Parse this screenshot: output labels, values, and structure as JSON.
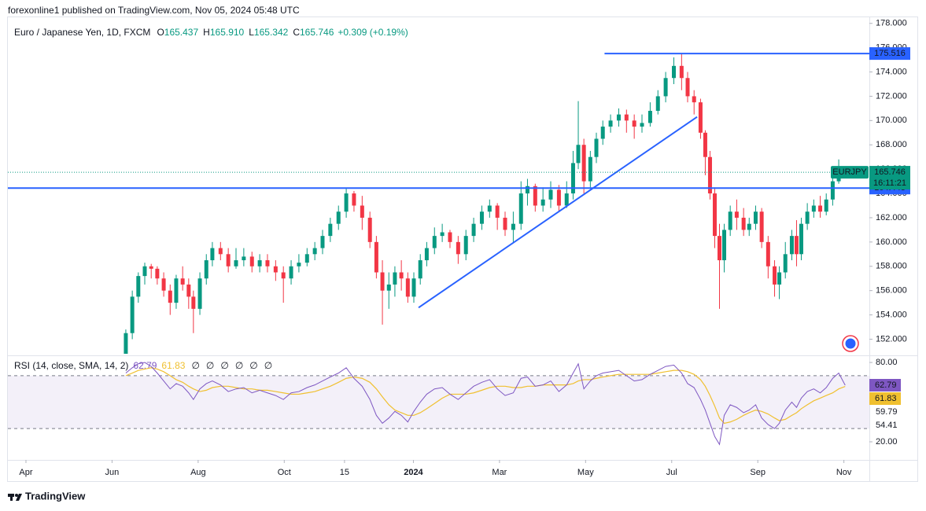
{
  "header": {
    "published": "forexonline1 published on TradingView.com, Nov 05, 2024 05:48 UTC",
    "symbol": "Euro / Japanese Yen, 1D, FXCM",
    "ohlc": [
      {
        "key": "O",
        "value": "165.437"
      },
      {
        "key": "H",
        "value": "165.910"
      },
      {
        "key": "L",
        "value": "165.342"
      },
      {
        "key": "C",
        "value": "165.746"
      }
    ],
    "change": "+0.309 (+0.19%)"
  },
  "chart_data": [
    {
      "type": "candlestick",
      "up_color": "#089981",
      "down_color": "#f23645",
      "xlim": [
        -0.42,
        19.5
      ],
      "xticks": [
        {
          "value": 0,
          "label": "Apr"
        },
        {
          "value": 2,
          "label": "Jun"
        },
        {
          "value": 4,
          "label": "Aug"
        },
        {
          "value": 6,
          "label": "Oct"
        },
        {
          "value": 7.4,
          "label": "15"
        },
        {
          "value": 9,
          "label": "2024"
        },
        {
          "value": 11,
          "label": "Mar"
        },
        {
          "value": 13,
          "label": "May"
        },
        {
          "value": 15,
          "label": "Jul"
        },
        {
          "value": 17,
          "label": "Sep"
        },
        {
          "value": 19,
          "label": "Nov"
        }
      ],
      "ylim": [
        150.8,
        178.5
      ],
      "yticks": [
        {
          "value": 152,
          "label": "152.000"
        },
        {
          "value": 154,
          "label": "154.000"
        },
        {
          "value": 156,
          "label": "156.000"
        },
        {
          "value": 158,
          "label": "158.000"
        },
        {
          "value": 160,
          "label": "160.000"
        },
        {
          "value": 162,
          "label": "162.000"
        },
        {
          "value": 164,
          "label": "164.000"
        },
        {
          "value": 166,
          "label": "166.000"
        },
        {
          "value": 168,
          "label": "168.000"
        },
        {
          "value": 170,
          "label": "170.000"
        },
        {
          "value": 172,
          "label": "172.000"
        },
        {
          "value": 174,
          "label": "174.000"
        },
        {
          "value": 176,
          "label": "176.000"
        },
        {
          "value": 178,
          "label": "178.000"
        }
      ],
      "x": [
        2.32,
        2.47,
        2.61,
        2.76,
        2.91,
        3.05,
        3.2,
        3.35,
        3.49,
        3.64,
        3.78,
        3.89,
        4.04,
        4.19,
        4.33,
        4.52,
        4.7,
        4.88,
        5.06,
        5.25,
        5.43,
        5.61,
        5.8,
        5.98,
        6.16,
        6.34,
        6.53,
        6.71,
        6.89,
        7.07,
        7.26,
        7.44,
        7.62,
        7.81,
        7.99,
        8.14,
        8.28,
        8.43,
        8.57,
        8.72,
        8.87,
        9.01,
        9.16,
        9.31,
        9.49,
        9.67,
        9.85,
        10.04,
        10.22,
        10.4,
        10.59,
        10.77,
        10.95,
        11.13,
        11.32,
        11.5,
        11.65,
        11.83,
        12.01,
        12.19,
        12.38,
        12.56,
        12.71,
        12.83,
        12.96,
        13.11,
        13.25,
        13.4,
        13.58,
        13.77,
        13.95,
        14.13,
        14.31,
        14.5,
        14.68,
        14.86,
        15.05,
        15.23,
        15.37,
        15.52,
        15.67,
        15.78,
        15.89,
        16.0,
        16.11,
        16.22,
        16.36,
        16.51,
        16.67,
        16.8,
        16.95,
        17.09,
        17.24,
        17.39,
        17.5,
        17.64,
        17.79,
        17.9,
        18.01,
        18.15,
        18.3,
        18.45,
        18.59,
        18.74,
        18.88,
        19.03
      ],
      "open": [
        150.8,
        152.5,
        155.5,
        157.2,
        158,
        157.8,
        157,
        156,
        155,
        157,
        156.5,
        155.5,
        154.5,
        157,
        158.5,
        159.5,
        159,
        158,
        158.5,
        158.8,
        158,
        158.5,
        158,
        157.5,
        157,
        158,
        158.3,
        159,
        159.5,
        160.5,
        161.5,
        162.5,
        164,
        163,
        162,
        160,
        157.5,
        156,
        156.5,
        157.5,
        157,
        155.5,
        157,
        158.5,
        159.5,
        160.5,
        160.8,
        160,
        159,
        160.5,
        161.5,
        162.5,
        163,
        162,
        161,
        161.5,
        164,
        164.6,
        163,
        163.5,
        164.3,
        163,
        164,
        166.5,
        168,
        165,
        167,
        168.5,
        169.5,
        170,
        170.5,
        170,
        169.5,
        169.8,
        170.8,
        172,
        173.5,
        174.5,
        173.5,
        172,
        171.5,
        169,
        167,
        164,
        160.5,
        158.5,
        161,
        162.5,
        162,
        161,
        161.5,
        162.5,
        160,
        158,
        156.5,
        157.5,
        159,
        160.5,
        159,
        161.5,
        162.5,
        163,
        162.5,
        163.5,
        165,
        165.437
      ],
      "high": [
        152.8,
        156,
        157.5,
        158.3,
        158.2,
        158,
        157.5,
        156.5,
        157.3,
        158,
        157,
        156,
        157.5,
        159,
        160,
        160,
        159.5,
        159.5,
        159.5,
        159.2,
        159,
        159,
        158.5,
        158,
        158.5,
        159,
        159.5,
        160,
        161,
        162,
        163,
        164.4,
        164.2,
        163.8,
        162.5,
        160.5,
        158.5,
        157.5,
        158,
        158.5,
        157.5,
        157.5,
        159,
        160,
        161.2,
        161.5,
        161,
        160.5,
        161,
        162,
        163,
        163.5,
        163.2,
        162.5,
        162.5,
        165,
        165.2,
        164.8,
        164.5,
        165,
        164.7,
        165,
        167.5,
        171.6,
        168.5,
        167.5,
        169,
        170,
        170.5,
        171,
        170.9,
        170.5,
        170.5,
        171.5,
        172.5,
        174,
        175.2,
        175.516,
        174,
        172.5,
        171.8,
        169.2,
        167.5,
        164.5,
        161.5,
        161.5,
        163,
        163.5,
        162.8,
        162,
        163,
        162.8,
        160.5,
        158.5,
        158,
        160,
        161,
        161.8,
        162,
        163.2,
        163.5,
        163.8,
        164,
        165.5,
        166.8,
        165.91
      ],
      "low": [
        150.8,
        152,
        155,
        156.5,
        157,
        156.5,
        155.5,
        154,
        154.5,
        156,
        154.5,
        152.5,
        154,
        156.5,
        158,
        158.5,
        157.5,
        157.8,
        158,
        157.5,
        157.5,
        157.5,
        156.8,
        155,
        156.5,
        157.5,
        158,
        158.5,
        159,
        160,
        161,
        162,
        162.5,
        161,
        159.5,
        157,
        153.2,
        154.5,
        155.5,
        156,
        155,
        155,
        156.5,
        158,
        159,
        160,
        159.5,
        158.2,
        158.5,
        160,
        161,
        162,
        161,
        160.5,
        160,
        161,
        163,
        162.5,
        162.5,
        162.8,
        162.5,
        162.8,
        163.5,
        166,
        164,
        164.5,
        166.5,
        168,
        169,
        169.5,
        169,
        168.5,
        169,
        169.5,
        170.5,
        171.5,
        173,
        172.5,
        171.5,
        170.5,
        168.5,
        165.5,
        163.5,
        159.5,
        154.5,
        157.5,
        160.5,
        161,
        160.5,
        160.5,
        161,
        159.5,
        157,
        155.5,
        155.3,
        157,
        158.5,
        158,
        158.5,
        161,
        162,
        162,
        162.2,
        163,
        164.8,
        165.342
      ],
      "close": [
        152.5,
        155.5,
        157.2,
        158,
        157.8,
        157,
        156,
        155,
        157,
        156.5,
        155.5,
        154.5,
        157,
        158.5,
        159.5,
        159,
        158,
        158.5,
        158.8,
        158,
        158.5,
        158,
        157.5,
        157,
        158,
        158.3,
        159,
        159.5,
        160.5,
        161.5,
        162.5,
        164,
        163,
        162,
        160,
        157.5,
        156,
        156.5,
        157.5,
        157,
        155.5,
        157,
        158.5,
        159.5,
        160.5,
        160.8,
        160,
        159,
        160.5,
        161.5,
        162.5,
        163,
        162,
        161,
        161.5,
        164,
        164.6,
        163,
        163.5,
        164.3,
        163,
        164,
        166.5,
        168,
        165,
        167,
        168.5,
        169.5,
        170,
        170.5,
        170,
        169.5,
        169.8,
        170.8,
        172,
        173.5,
        174.5,
        173.5,
        172,
        171.5,
        169,
        167,
        164,
        160.5,
        158.5,
        161,
        162.5,
        162,
        161,
        161.5,
        162.5,
        160,
        158,
        156.5,
        157.5,
        159,
        160.5,
        159,
        161.5,
        162.5,
        163,
        162.5,
        163.5,
        165,
        165.437,
        165.746
      ],
      "levels": [
        {
          "value": 175.516,
          "from": 13.44,
          "color": "#2962ff"
        },
        {
          "value": 164.443,
          "color": "#2962ff"
        }
      ],
      "trendline": {
        "x": [
          9.12,
          15.59
        ],
        "y": [
          154.6,
          170.3
        ],
        "color": "#2962ff"
      },
      "last_price": {
        "symbol": "EURJPY",
        "value": 165.746,
        "countdown": "16:11:21",
        "color": "#089981"
      }
    },
    {
      "type": "line",
      "title": "RSI (14, close, SMA, 14, 2)",
      "ylim": [
        7.5,
        83.6
      ],
      "yticks": [
        {
          "value": 80,
          "label": "80.00"
        },
        {
          "value": 20,
          "label": "20.00"
        }
      ],
      "band": [
        70,
        30
      ],
      "band_color": "#7e57c2",
      "series": [
        {
          "color": "#7e57c2",
          "values": [
            72,
            76,
            79,
            80,
            77,
            72,
            66,
            60,
            64,
            62,
            57,
            52,
            60,
            64,
            66,
            63,
            58,
            60,
            61,
            57,
            59,
            57,
            55,
            52,
            57,
            58,
            61,
            63,
            66,
            69,
            72,
            76,
            68,
            62,
            52,
            40,
            34,
            38,
            43,
            40,
            35,
            43,
            50,
            56,
            60,
            61,
            56,
            52,
            57,
            62,
            65,
            67,
            60,
            55,
            57,
            68,
            69,
            62,
            63,
            66,
            58,
            63,
            72,
            79,
            60,
            66,
            70,
            72,
            73,
            74,
            70,
            66,
            67,
            71,
            74,
            77,
            78,
            72,
            64,
            61,
            52,
            44,
            34,
            24,
            18,
            40,
            48,
            46,
            42,
            44,
            48,
            38,
            33,
            30,
            34,
            44,
            50,
            46,
            53,
            58,
            60,
            57,
            61,
            68,
            72,
            62.79
          ]
        },
        {
          "color": "#f0c030",
          "values": [
            70,
            72,
            74,
            75,
            76,
            75,
            73,
            70,
            67,
            65,
            62,
            60,
            58,
            59,
            61,
            62,
            62,
            61,
            60,
            60,
            59,
            59,
            58,
            57,
            56,
            56,
            57,
            58,
            60,
            62,
            65,
            68,
            69,
            68,
            65,
            60,
            54,
            48,
            44,
            42,
            40,
            40,
            42,
            45,
            49,
            53,
            56,
            56,
            56,
            57,
            59,
            61,
            62,
            62,
            61,
            61,
            62,
            62,
            63,
            63,
            63,
            63,
            64,
            66,
            67,
            67,
            68,
            69,
            70,
            71,
            71,
            71,
            71,
            71,
            72,
            73,
            74,
            74,
            73,
            71,
            67,
            62,
            55,
            47,
            38,
            34,
            35,
            37,
            40,
            42,
            44,
            43,
            41,
            38,
            36,
            37,
            40,
            42,
            45,
            48,
            51,
            53,
            55,
            57,
            60,
            61.83
          ]
        }
      ],
      "indicator_values": [
        62.79,
        61.83
      ],
      "toggles": [
        "∅",
        "∅",
        "∅",
        "∅",
        "∅",
        "∅"
      ],
      "extra_labels": [
        "59.79",
        "54.41"
      ]
    }
  ],
  "footer": {
    "brand": "TradingView"
  }
}
